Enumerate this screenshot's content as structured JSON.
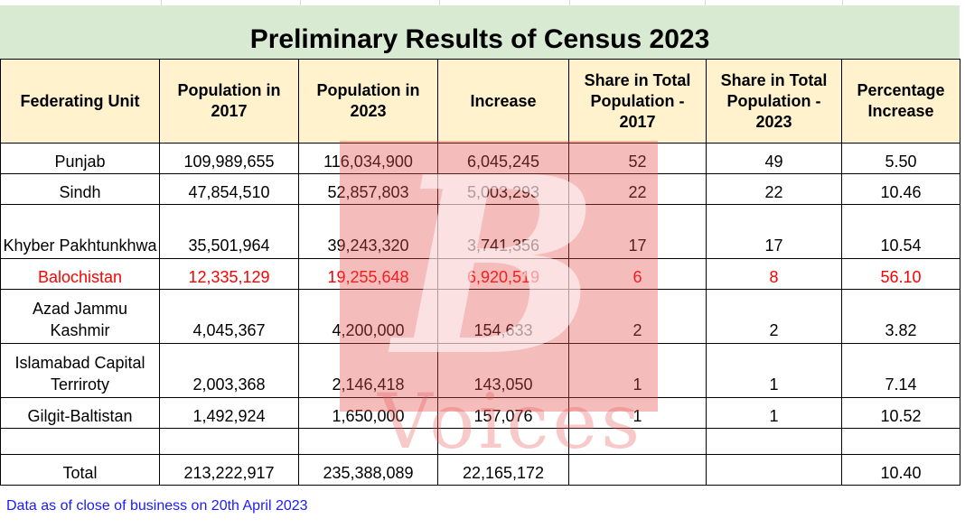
{
  "title": "Preliminary Results of Census 2023",
  "headers": [
    "Federating Unit",
    "Population in 2017",
    "Population in 2023",
    "Increase",
    "Share in Total Population - 2017",
    "Share in Total Population - 2023",
    "Percentage Increase"
  ],
  "rows": [
    {
      "unit": "Punjab",
      "pop2017": "109,989,655",
      "pop2023": "116,034,900",
      "increase": "6,045,245",
      "share2017": "52",
      "share2023": "49",
      "pct": "5.50"
    },
    {
      "unit": "Sindh",
      "pop2017": "47,854,510",
      "pop2023": "52,857,803",
      "increase": "5,003,293",
      "share2017": "22",
      "share2023": "22",
      "pct": "10.46"
    },
    {
      "unit": "Khyber Pakhtunkhwa",
      "pop2017": "35,501,964",
      "pop2023": "39,243,320",
      "increase": "3,741,356",
      "share2017": "17",
      "share2023": "17",
      "pct": "10.54"
    },
    {
      "unit": "Balochistan",
      "pop2017": "12,335,129",
      "pop2023": "19,255,648",
      "increase": "6,920,519",
      "share2017": "6",
      "share2023": "8",
      "pct": "56.10"
    },
    {
      "unit": "Azad Jammu Kashmir",
      "pop2017": "4,045,367",
      "pop2023": "4,200,000",
      "increase": "154,633",
      "share2017": "2",
      "share2023": "2",
      "pct": "3.82"
    },
    {
      "unit": "Islamabad Capital Terriroty",
      "pop2017": "2,003,368",
      "pop2023": "2,146,418",
      "increase": "143,050",
      "share2017": "1",
      "share2023": "1",
      "pct": "7.14"
    },
    {
      "unit": "Gilgit-Baltistan",
      "pop2017": "1,492,924",
      "pop2023": "1,650,000",
      "increase": "157,076",
      "share2017": "1",
      "share2023": "1",
      "pct": "10.52"
    }
  ],
  "total": {
    "unit": "Total",
    "pop2017": "213,222,917",
    "pop2023": "235,388,089",
    "increase": "22,165,172",
    "share2017": "",
    "share2023": "",
    "pct": "10.40"
  },
  "note": "Data as of close of business on 20th April 2023",
  "watermark": {
    "letter": "B",
    "word": "Voices"
  },
  "colors": {
    "title_bg": "#d9ead3",
    "header_bg": "#fff2cc",
    "highlight_text": "#ff0000",
    "note_text": "#1a1aff",
    "watermark": "#e65050"
  }
}
